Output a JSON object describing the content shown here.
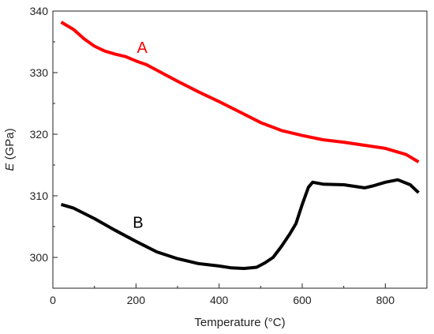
{
  "chart_data": {
    "type": "line",
    "title": "",
    "xlabel": "Temperature (°C)",
    "ylabel_italic": "E",
    "ylabel_rest": " (GPa)",
    "xlim": [
      0,
      900
    ],
    "ylim": [
      295,
      340
    ],
    "xticks": [
      0,
      200,
      400,
      600,
      800
    ],
    "yticks": [
      300,
      310,
      320,
      330,
      340
    ],
    "xtick_labels": [
      "0",
      "200",
      "400",
      "600",
      "800"
    ],
    "ytick_labels": [
      "300",
      "310",
      "320",
      "330",
      "340"
    ],
    "grid": false,
    "series": [
      {
        "name": "A",
        "color": "#ff0000",
        "label_position": {
          "x": 215,
          "y": 333.2
        },
        "x": [
          20,
          50,
          75,
          100,
          125,
          150,
          175,
          200,
          225,
          250,
          275,
          300,
          350,
          400,
          450,
          500,
          550,
          600,
          650,
          700,
          750,
          800,
          850,
          880
        ],
        "y": [
          338.2,
          337.0,
          335.5,
          334.3,
          333.5,
          333.0,
          332.6,
          331.9,
          331.3,
          330.4,
          329.5,
          328.6,
          326.9,
          325.3,
          323.6,
          321.9,
          320.6,
          319.8,
          319.1,
          318.7,
          318.2,
          317.7,
          316.7,
          315.5
        ]
      },
      {
        "name": "B",
        "color": "#000000",
        "label_position": {
          "x": 205,
          "y": 304.8
        },
        "x": [
          20,
          50,
          100,
          150,
          200,
          250,
          300,
          350,
          400,
          430,
          460,
          490,
          510,
          530,
          550,
          570,
          585,
          600,
          615,
          625,
          650,
          700,
          750,
          770,
          800,
          830,
          860,
          880
        ],
        "y": [
          308.6,
          308.0,
          306.3,
          304.4,
          302.6,
          300.9,
          299.8,
          299.0,
          298.6,
          298.3,
          298.2,
          298.4,
          299.1,
          300.0,
          301.8,
          303.8,
          305.5,
          308.6,
          311.4,
          312.2,
          311.9,
          311.8,
          311.3,
          311.6,
          312.2,
          312.6,
          311.8,
          310.5
        ]
      }
    ]
  }
}
